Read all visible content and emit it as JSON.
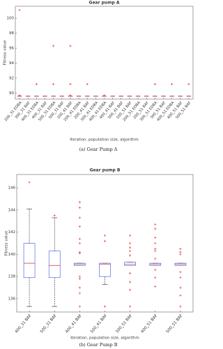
{
  "chart_data": [
    {
      "type": "box",
      "title": "Gear pump A",
      "ylabel": "Fitness value",
      "xlabel": "Iteration, population size, algorithm",
      "caption": "(a) Gear Pump A",
      "categories": [
        "200_31 EDBA",
        "300_31 BAF",
        "400_31 EDBA",
        "400_31 BAF",
        "500_31 EDBA",
        "500_31 BAF",
        "100_41 BAF",
        "200_41 EDBA",
        "200_41 BAF",
        "300_41 EDBA",
        "400_41 EDBA",
        "400_41 BAF",
        "500_41 BAF",
        "100_51 BAF",
        "200_51 EDBA",
        "200_51 BAF",
        "300_51 EDBA",
        "300_51 BAF",
        "400_51 EDBA",
        "400_51 BAF",
        "500_51 BAF"
      ],
      "boxes": [
        {
          "whislo": 89.6,
          "q1": 89.6,
          "med": 89.6,
          "q3": 89.6,
          "whishi": 89.6,
          "fliers": [
            101.1,
            89.7
          ]
        },
        {
          "whislo": 89.6,
          "q1": 89.6,
          "med": 89.6,
          "q3": 89.6,
          "whishi": 89.6,
          "fliers": []
        },
        {
          "whislo": 89.6,
          "q1": 89.6,
          "med": 89.6,
          "q3": 89.6,
          "whishi": 89.6,
          "fliers": [
            91.2
          ]
        },
        {
          "whislo": 89.6,
          "q1": 89.6,
          "med": 89.6,
          "q3": 89.6,
          "whishi": 89.6,
          "fliers": []
        },
        {
          "whislo": 89.6,
          "q1": 89.6,
          "med": 89.6,
          "q3": 89.6,
          "whishi": 89.6,
          "fliers": [
            96.3,
            91.2
          ]
        },
        {
          "whislo": 89.6,
          "q1": 89.6,
          "med": 89.6,
          "q3": 89.6,
          "whishi": 89.6,
          "fliers": []
        },
        {
          "whislo": 89.6,
          "q1": 89.6,
          "med": 89.6,
          "q3": 89.6,
          "whishi": 89.6,
          "fliers": [
            96.3,
            91.2,
            89.7
          ]
        },
        {
          "whislo": 89.6,
          "q1": 89.6,
          "med": 89.6,
          "q3": 89.6,
          "whishi": 89.6,
          "fliers": []
        },
        {
          "whislo": 89.6,
          "q1": 89.6,
          "med": 89.6,
          "q3": 89.6,
          "whishi": 89.6,
          "fliers": [
            91.2
          ]
        },
        {
          "whislo": 89.6,
          "q1": 89.6,
          "med": 89.6,
          "q3": 89.6,
          "whishi": 89.6,
          "fliers": []
        },
        {
          "whislo": 89.6,
          "q1": 89.6,
          "med": 89.6,
          "q3": 89.6,
          "whishi": 89.6,
          "fliers": [
            89.7
          ]
        },
        {
          "whislo": 89.6,
          "q1": 89.6,
          "med": 89.6,
          "q3": 89.6,
          "whishi": 89.6,
          "fliers": []
        },
        {
          "whislo": 89.6,
          "q1": 89.6,
          "med": 89.6,
          "q3": 89.6,
          "whishi": 89.6,
          "fliers": []
        },
        {
          "whislo": 89.6,
          "q1": 89.6,
          "med": 89.6,
          "q3": 89.6,
          "whishi": 89.6,
          "fliers": []
        },
        {
          "whislo": 89.6,
          "q1": 89.6,
          "med": 89.6,
          "q3": 89.6,
          "whishi": 89.6,
          "fliers": []
        },
        {
          "whislo": 89.6,
          "q1": 89.6,
          "med": 89.6,
          "q3": 89.6,
          "whishi": 89.6,
          "fliers": []
        },
        {
          "whislo": 89.6,
          "q1": 89.6,
          "med": 89.6,
          "q3": 89.6,
          "whishi": 89.6,
          "fliers": [
            91.2
          ]
        },
        {
          "whislo": 89.6,
          "q1": 89.6,
          "med": 89.6,
          "q3": 89.6,
          "whishi": 89.6,
          "fliers": []
        },
        {
          "whislo": 89.6,
          "q1": 89.6,
          "med": 89.6,
          "q3": 89.6,
          "whishi": 89.6,
          "fliers": [
            91.2
          ]
        },
        {
          "whislo": 89.6,
          "q1": 89.6,
          "med": 89.6,
          "q3": 89.6,
          "whishi": 89.6,
          "fliers": []
        },
        {
          "whislo": 89.6,
          "q1": 89.6,
          "med": 89.6,
          "q3": 89.6,
          "whishi": 89.6,
          "fliers": [
            91.2
          ]
        }
      ],
      "ylim": [
        89.2,
        101.6
      ],
      "yticks": [
        90,
        92,
        94,
        96,
        98,
        100
      ],
      "box_color": "#3a4fe0",
      "median_color": "#e02a2a",
      "flier_color": "#e02a2a"
    },
    {
      "type": "box",
      "title": "Gear pump B",
      "ylabel": "Fitness value",
      "xlabel": "Iteration, population size, algorithm",
      "caption": "(b) Gear Pump B",
      "categories": [
        "400_31 BAF",
        "500_31 BAF",
        "400_41 BAF",
        "500_41 BAF",
        "300_51 BAF",
        "400_51 BAF",
        "500_51 BAF"
      ],
      "boxes": [
        {
          "whislo": 135.3,
          "q1": 137.9,
          "med": 139.2,
          "q3": 141.0,
          "whishi": 144.1,
          "fliers": [
            146.5
          ]
        },
        {
          "whislo": 135.3,
          "q1": 137.9,
          "med": 139.0,
          "q3": 140.3,
          "whishi": 143.3,
          "fliers": [
            143.5
          ]
        },
        {
          "whislo": 139.0,
          "q1": 139.0,
          "med": 139.1,
          "q3": 139.2,
          "whishi": 139.2,
          "fliers": [
            144.7,
            144.2,
            143.3,
            142.5,
            141.4,
            141.0,
            140.2,
            140.1,
            138.0,
            137.8,
            137.0,
            136.5,
            135.3
          ]
        },
        {
          "whislo": 137.3,
          "q1": 138.0,
          "med": 139.1,
          "q3": 139.2,
          "whishi": 139.2,
          "fliers": [
            141.7,
            141.2,
            135.3
          ]
        },
        {
          "whislo": 139.0,
          "q1": 139.0,
          "med": 139.1,
          "q3": 139.3,
          "whishi": 139.3,
          "fliers": [
            141.7,
            141.0,
            140.6,
            140.3,
            139.9,
            138.3,
            137.5,
            136.8,
            135.3
          ]
        },
        {
          "whislo": 139.0,
          "q1": 139.0,
          "med": 139.1,
          "q3": 139.2,
          "whishi": 139.2,
          "fliers": [
            142.7,
            142.3,
            141.5,
            141.0,
            140.5,
            140.3,
            139.6,
            138.6,
            137.9,
            137.1
          ]
        },
        {
          "whislo": 139.0,
          "q1": 139.0,
          "med": 139.1,
          "q3": 139.2,
          "whishi": 139.2,
          "fliers": [
            140.5,
            140.2,
            140.0,
            138.4,
            137.9,
            137.0,
            136.3,
            135.3
          ]
        }
      ],
      "ylim": [
        134.8,
        147.2
      ],
      "yticks": [
        136,
        138,
        140,
        142,
        144,
        146
      ],
      "box_color": "#3a4fe0",
      "median_color": "#e02a2a",
      "flier_color": "#e02a2a"
    }
  ]
}
